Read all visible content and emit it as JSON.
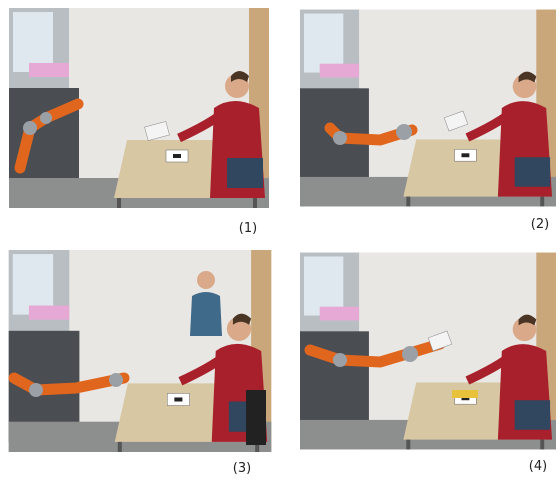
{
  "panels": [
    {
      "label": "(1)"
    },
    {
      "label": "(2)"
    },
    {
      "label": "(3)"
    },
    {
      "label": "(4)"
    }
  ]
}
